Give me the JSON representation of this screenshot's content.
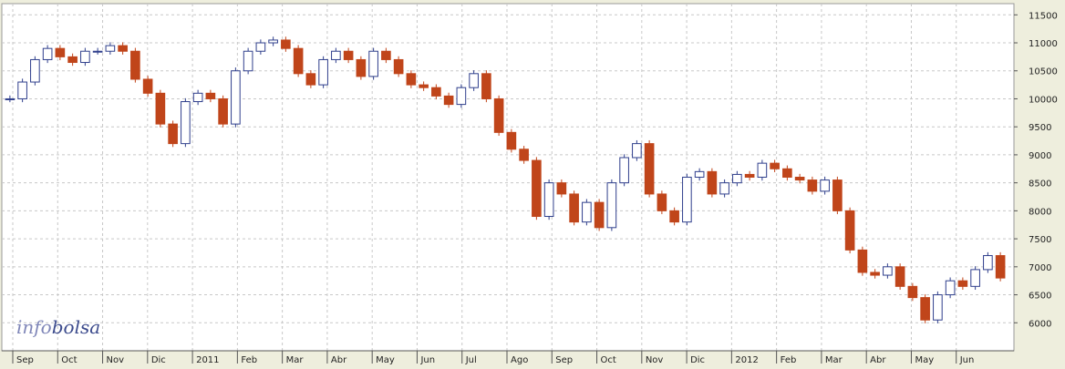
{
  "brand": {
    "logo_part1": "info",
    "logo_part2": "bolsa",
    "color_part1": "#7f86b8",
    "color_part2": "#3b4a8c"
  },
  "colors": {
    "background": "#ffffff",
    "frame": "#eeeedd",
    "grid": "#c8c8c8",
    "up_candle": "#2f3f8c",
    "down_candle": "#c0451a"
  },
  "chart_data": {
    "type": "candlestick",
    "title": "",
    "xlabel": "",
    "ylabel": "",
    "ylim": [
      5500,
      11700
    ],
    "y_axis_position": "right",
    "y_ticks": [
      6000,
      6500,
      7000,
      7500,
      8000,
      8500,
      9000,
      9500,
      10000,
      10500,
      11000,
      11500
    ],
    "grid": true,
    "x_labels": [
      "Sep",
      "Oct",
      "Nov",
      "Dic",
      "2011",
      "Feb",
      "Mar",
      "Abr",
      "May",
      "Jun",
      "Jul",
      "Ago",
      "Sep",
      "Oct",
      "Nov",
      "Dic",
      "2012",
      "Feb",
      "Mar",
      "Abr",
      "May",
      "Jun"
    ],
    "series": [
      {
        "values": [
          10000,
          10300,
          10700,
          10900,
          10750,
          10650,
          10850,
          10850,
          10950,
          10850,
          10350,
          10100,
          9550,
          9200,
          9950,
          10100,
          10000,
          9550,
          10500,
          10850,
          11000,
          11050,
          10900,
          10450,
          10250,
          10700,
          10850,
          10700,
          10400,
          10850,
          10700,
          10450,
          10250,
          10200,
          10050,
          9900,
          10200,
          10450,
          10000,
          9400,
          9100,
          8900,
          7900,
          8500,
          8300,
          7800,
          8150,
          7700,
          8500,
          8950,
          9200,
          8300,
          8000,
          7800,
          8600,
          8700,
          8300,
          8500,
          8650,
          8600,
          8850,
          8750,
          8600,
          8550,
          8350,
          8550,
          8000,
          7300,
          6900,
          6850,
          7000,
          6650,
          6450,
          6050,
          6500,
          6750,
          6650,
          6950,
          7200,
          6800
        ]
      }
    ]
  }
}
